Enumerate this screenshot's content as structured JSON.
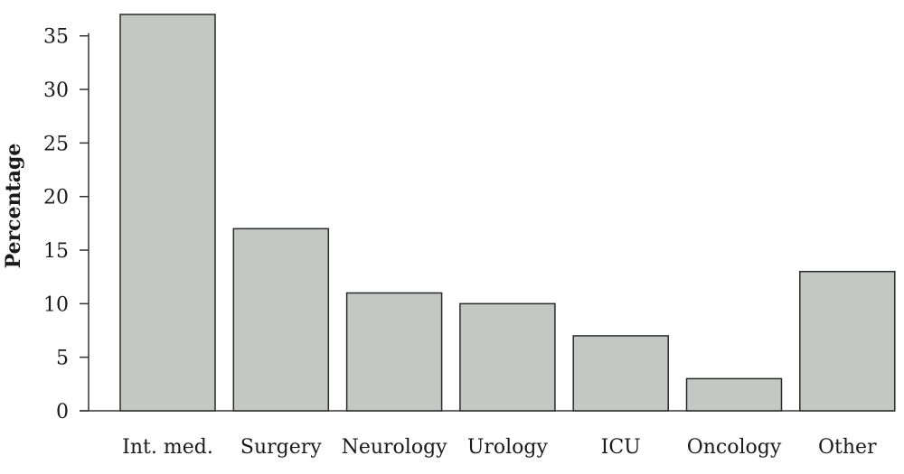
{
  "chart_data": {
    "type": "bar",
    "title": "",
    "xlabel": "",
    "ylabel": "Percentage",
    "categories": [
      "Int. med.",
      "Surgery",
      "Neurology",
      "Urology",
      "ICU",
      "Oncology",
      "Other"
    ],
    "values": [
      37,
      17,
      11,
      10,
      7,
      3,
      13
    ],
    "ylim": [
      0,
      37
    ],
    "yticks": [
      0,
      5,
      10,
      15,
      20,
      25,
      30,
      35
    ],
    "grid": false,
    "legend": "none",
    "bar_color": "#c3c8c5",
    "bar_edge_color": "#2a2a2a"
  }
}
